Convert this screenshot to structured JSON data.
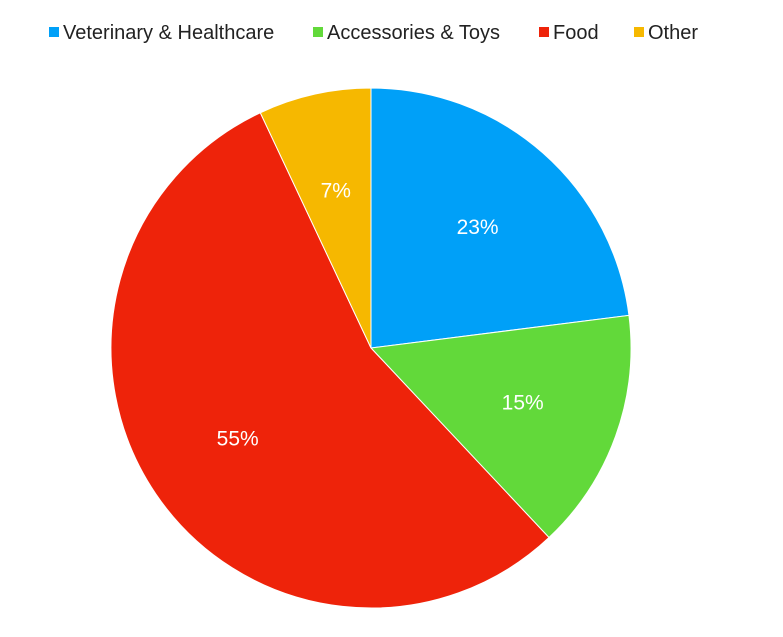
{
  "chart_data": {
    "type": "pie",
    "legend_position": "top",
    "start_angle": "12 o'clock, clockwise",
    "slices": [
      {
        "label": "Veterinary & Healthcare",
        "value": 23,
        "display": "23%",
        "color": "#00A0F8"
      },
      {
        "label": "Accessories & Toys",
        "value": 15,
        "display": "15%",
        "color": "#62D93A"
      },
      {
        "label": "Food",
        "value": 55,
        "display": "55%",
        "color": "#EE230A"
      },
      {
        "label": "Other",
        "value": 7,
        "display": "7%",
        "color": "#F6B800"
      }
    ]
  }
}
